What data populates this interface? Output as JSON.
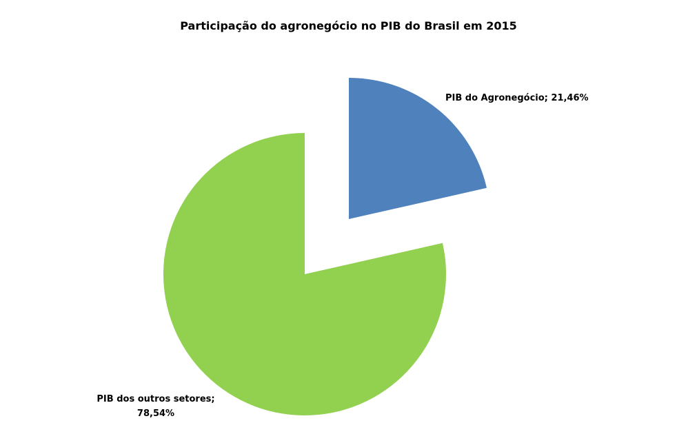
{
  "chart_data": {
    "type": "pie",
    "title": "Participação do agronegócio no PIB do Brasil em 2015",
    "slices": [
      {
        "name": "PIB do Agronegócio",
        "value": 21.46,
        "label": "PIB do Agronegócio; 21,46%",
        "color": "#4f81bd",
        "exploded": true
      },
      {
        "name": "PIB dos outros setores",
        "value": 78.54,
        "label_lines": [
          "PIB dos outros setores;",
          "78,54%"
        ],
        "color": "#92d050",
        "exploded": false
      }
    ],
    "legend": "none",
    "start_angle": "12 o'clock",
    "direction": "clockwise"
  }
}
